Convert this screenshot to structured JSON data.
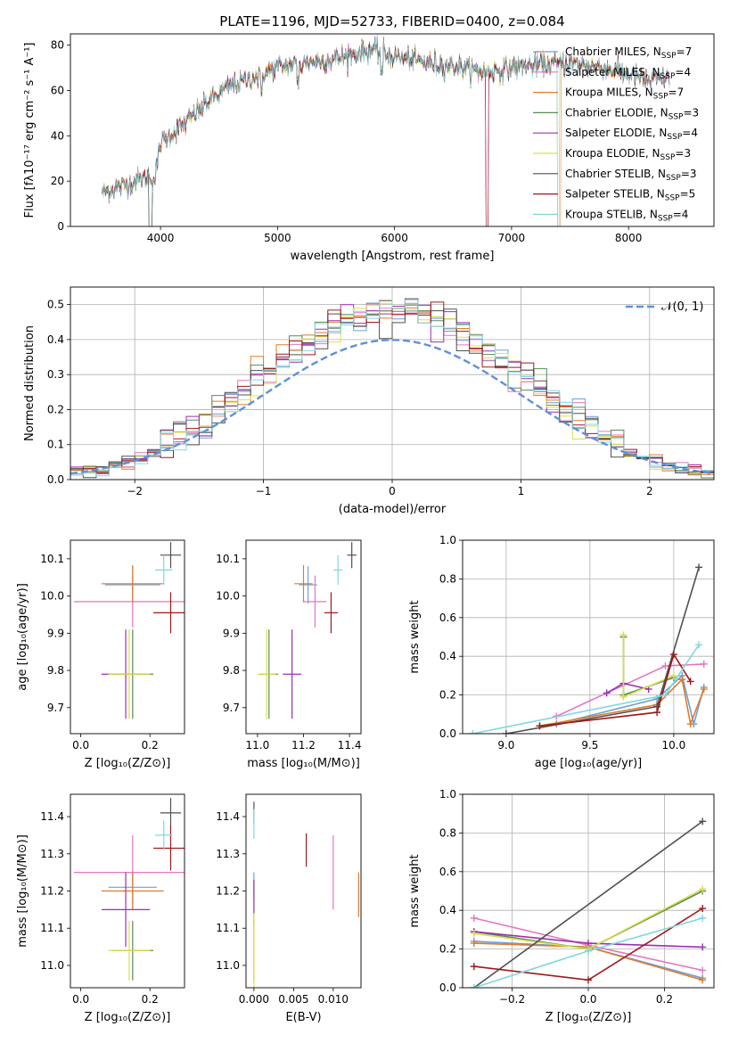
{
  "figure": {
    "title": "PLATE=1196, MJD=52733, FIBERID=0400, z=0.084"
  },
  "models": [
    {
      "name": "Chabrier MILES",
      "nssp": "7",
      "color": "#6f9fd8"
    },
    {
      "name": "Salpeter MILES",
      "nssp": "4",
      "color": "#e377c2"
    },
    {
      "name": "Kroupa MILES",
      "nssp": "7",
      "color": "#e07b2a"
    },
    {
      "name": "Chabrier ELODIE",
      "nssp": "3",
      "color": "#5a8a5a"
    },
    {
      "name": "Salpeter ELODIE",
      "nssp": "4",
      "color": "#9b30b0"
    },
    {
      "name": "Kroupa ELODIE",
      "nssp": "3",
      "color": "#d9e04a"
    },
    {
      "name": "Chabrier STELIB",
      "nssp": "3",
      "color": "#505050"
    },
    {
      "name": "Salpeter STELIB",
      "nssp": "5",
      "color": "#a01818"
    },
    {
      "name": "Kroupa STELIB",
      "nssp": "4",
      "color": "#7fd8e0"
    }
  ],
  "chart_data": [
    {
      "id": "spectrum",
      "type": "line",
      "title": "PLATE=1196, MJD=52733, FIBERID=0400, z=0.084",
      "xlabel": "wavelength [Angstrom, rest frame]",
      "ylabel": "Flux [fλ10⁻¹⁷ erg cm⁻² s⁻¹ A⁻¹]",
      "xlim": [
        3230,
        8730
      ],
      "ylim": [
        0,
        85
      ],
      "xticks": [
        "4000",
        "5000",
        "6000",
        "7000",
        "8000"
      ],
      "yticks": [
        "0",
        "20",
        "40",
        "60",
        "80"
      ],
      "legend": "upper-right",
      "continuum_nodes": [
        [
          3500,
          15
        ],
        [
          3900,
          22
        ],
        [
          3950,
          20
        ],
        [
          4000,
          37
        ],
        [
          4200,
          45
        ],
        [
          4400,
          55
        ],
        [
          4600,
          62
        ],
        [
          4800,
          66
        ],
        [
          5000,
          70
        ],
        [
          5200,
          72
        ],
        [
          5500,
          74
        ],
        [
          5800,
          78
        ],
        [
          6000,
          75
        ],
        [
          6300,
          72
        ],
        [
          6600,
          70
        ],
        [
          6800,
          68
        ],
        [
          7100,
          71
        ],
        [
          7500,
          72
        ],
        [
          7800,
          70
        ],
        [
          8000,
          67
        ],
        [
          8200,
          64
        ],
        [
          8350,
          66
        ]
      ],
      "drops": [
        [
          3900,
          3930
        ],
        [
          6780,
          6800
        ],
        [
          7390,
          7410
        ]
      ]
    },
    {
      "id": "residuals",
      "type": "histogram",
      "xlabel": "(data-model)/error",
      "ylabel": "Normed distribution",
      "xlim": [
        -2.5,
        2.5
      ],
      "ylim": [
        0,
        0.55
      ],
      "xticks": [
        "−2",
        "−1",
        "0",
        "1",
        "2"
      ],
      "yticks": [
        "0.0",
        "0.1",
        "0.2",
        "0.3",
        "0.4",
        "0.5"
      ],
      "grid": true,
      "gauss_label": "𝒩(0, 1)",
      "bin_width": 0.1
    },
    {
      "id": "age-vs-Z",
      "type": "errorbar",
      "xlabel": "Z [log₁₀(Z/Z⊙)]",
      "ylabel": "age  [log₁₀(age/yr)]",
      "xlim": [
        -0.03,
        0.3
      ],
      "ylim": [
        9.63,
        10.15
      ],
      "xticks": [
        "0.0",
        "0.2"
      ],
      "yticks": [
        "9.7",
        "9.8",
        "9.9",
        "10.0",
        "10.1"
      ],
      "points": [
        {
          "m": 0,
          "x": 0.15,
          "y": 10.03,
          "ex": 0.08,
          "ey": 0.05
        },
        {
          "m": 1,
          "x": 0.15,
          "y": 9.985,
          "ex": 0.17,
          "ey": 0.07
        },
        {
          "m": 2,
          "x": 0.15,
          "y": 10.033,
          "ex": 0.09,
          "ey": 0.05
        },
        {
          "m": 3,
          "x": 0.15,
          "y": 9.79,
          "ex": 0.06,
          "ey": 0.12
        },
        {
          "m": 4,
          "x": 0.13,
          "y": 9.79,
          "ex": 0.07,
          "ey": 0.12
        },
        {
          "m": 5,
          "x": 0.14,
          "y": 9.79,
          "ex": 0.06,
          "ey": 0.12
        },
        {
          "m": 6,
          "x": 0.26,
          "y": 10.11,
          "ex": 0.03,
          "ey": 0.035
        },
        {
          "m": 7,
          "x": 0.26,
          "y": 9.955,
          "ex": 0.05,
          "ey": 0.055
        },
        {
          "m": 8,
          "x": 0.24,
          "y": 10.07,
          "ex": 0.025,
          "ey": 0.04
        }
      ]
    },
    {
      "id": "age-vs-mass",
      "type": "errorbar",
      "xlabel": "mass [log₁₀(M/M⊙)]",
      "ylabel": "",
      "xlim": [
        10.95,
        11.45
      ],
      "ylim": [
        9.63,
        10.15
      ],
      "xticks": [
        "11.0",
        "11.2",
        "11.4"
      ],
      "yticks": [
        "9.7",
        "9.8",
        "9.9",
        "10.0",
        "10.1"
      ],
      "points": [
        {
          "m": 0,
          "x": 11.22,
          "y": 10.03,
          "ex": 0.04,
          "ey": 0.05
        },
        {
          "m": 1,
          "x": 11.25,
          "y": 9.985,
          "ex": 0.05,
          "ey": 0.07
        },
        {
          "m": 2,
          "x": 11.2,
          "y": 10.033,
          "ex": 0.04,
          "ey": 0.05
        },
        {
          "m": 3,
          "x": 11.05,
          "y": 9.79,
          "ex": 0.04,
          "ey": 0.12
        },
        {
          "m": 4,
          "x": 11.15,
          "y": 9.79,
          "ex": 0.04,
          "ey": 0.12
        },
        {
          "m": 5,
          "x": 11.04,
          "y": 9.79,
          "ex": 0.04,
          "ey": 0.12
        },
        {
          "m": 6,
          "x": 11.41,
          "y": 10.11,
          "ex": 0.02,
          "ey": 0.035
        },
        {
          "m": 7,
          "x": 11.32,
          "y": 9.955,
          "ex": 0.03,
          "ey": 0.055
        },
        {
          "m": 8,
          "x": 11.35,
          "y": 10.07,
          "ex": 0.02,
          "ey": 0.04
        }
      ]
    },
    {
      "id": "weight-vs-age",
      "type": "line",
      "xlabel": "age  [log₁₀(age/yr)]",
      "ylabel": "mass weight",
      "xlim": [
        8.74,
        10.24
      ],
      "ylim": [
        0,
        1.0
      ],
      "xticks": [
        "9.0",
        "9.5",
        "10.0"
      ],
      "yticks": [
        "0.0",
        "0.2",
        "0.4",
        "0.6",
        "0.8",
        "1.0"
      ],
      "grid": true,
      "series": [
        {
          "m": 0,
          "x": [
            9.3,
            9.9,
            10.05,
            10.12,
            10.18
          ],
          "y": [
            0.05,
            0.18,
            0.3,
            0.05,
            0.24
          ]
        },
        {
          "m": 1,
          "x": [
            9.3,
            9.95,
            10.18
          ],
          "y": [
            0.09,
            0.35,
            0.36
          ]
        },
        {
          "m": 2,
          "x": [
            9.2,
            9.9,
            10.05,
            10.1,
            10.18
          ],
          "y": [
            0.04,
            0.15,
            0.28,
            0.05,
            0.23
          ]
        },
        {
          "m": 3,
          "x": [
            9.7,
            9.7,
            10.0
          ],
          "y": [
            0.5,
            0.2,
            0.29
          ]
        },
        {
          "m": 4,
          "x": [
            9.6,
            9.7,
            9.85
          ],
          "y": [
            0.21,
            0.26,
            0.23
          ]
        },
        {
          "m": 5,
          "x": [
            9.7,
            9.7,
            10.0
          ],
          "y": [
            0.51,
            0.19,
            0.3
          ]
        },
        {
          "m": 6,
          "x": [
            9.0,
            9.9,
            10.15
          ],
          "y": [
            0.0,
            0.14,
            0.86
          ]
        },
        {
          "m": 7,
          "x": [
            9.2,
            9.9,
            10.0,
            10.1
          ],
          "y": [
            0.04,
            0.11,
            0.41,
            0.27
          ]
        },
        {
          "m": 8,
          "x": [
            8.8,
            9.95,
            10.15
          ],
          "y": [
            0.0,
            0.2,
            0.46
          ]
        }
      ]
    },
    {
      "id": "mass-vs-Z",
      "type": "errorbar",
      "xlabel": "Z [log₁₀(Z/Z⊙)]",
      "ylabel": "mass [log₁₀(M/M⊙)]",
      "xlim": [
        -0.03,
        0.3
      ],
      "ylim": [
        10.94,
        11.46
      ],
      "xticks": [
        "0.0",
        "0.2"
      ],
      "yticks": [
        "11.0",
        "11.1",
        "11.2",
        "11.3",
        "11.4"
      ],
      "points": [
        {
          "m": 0,
          "x": 0.15,
          "y": 11.21,
          "ex": 0.07,
          "ey": 0.04
        },
        {
          "m": 1,
          "x": 0.15,
          "y": 11.25,
          "ex": 0.17,
          "ey": 0.1
        },
        {
          "m": 2,
          "x": 0.15,
          "y": 11.2,
          "ex": 0.09,
          "ey": 0.05
        },
        {
          "m": 3,
          "x": 0.15,
          "y": 11.04,
          "ex": 0.06,
          "ey": 0.08
        },
        {
          "m": 4,
          "x": 0.13,
          "y": 11.15,
          "ex": 0.07,
          "ey": 0.1
        },
        {
          "m": 5,
          "x": 0.14,
          "y": 11.04,
          "ex": 0.06,
          "ey": 0.08
        },
        {
          "m": 6,
          "x": 0.26,
          "y": 11.41,
          "ex": 0.03,
          "ey": 0.04
        },
        {
          "m": 7,
          "x": 0.26,
          "y": 11.315,
          "ex": 0.05,
          "ey": 0.06
        },
        {
          "m": 8,
          "x": 0.24,
          "y": 11.35,
          "ex": 0.025,
          "ey": 0.04
        }
      ]
    },
    {
      "id": "mass-vs-EBV",
      "type": "errorbar",
      "xlabel": "E(B-V)",
      "ylabel": "",
      "xlim": [
        -0.001,
        0.0135
      ],
      "ylim": [
        10.94,
        11.46
      ],
      "xticks": [
        "0.000",
        "0.005",
        "0.010"
      ],
      "yticks": [
        "11.0",
        "11.1",
        "11.2",
        "11.3",
        "11.4"
      ],
      "points": [
        {
          "m": 0,
          "x": 0.0,
          "y": 11.21,
          "ex": 0,
          "ey": 0.04
        },
        {
          "m": 1,
          "x": 0.01,
          "y": 11.25,
          "ex": 0,
          "ey": 0.1
        },
        {
          "m": 2,
          "x": 0.0132,
          "y": 11.19,
          "ex": 0,
          "ey": 0.06
        },
        {
          "m": 3,
          "x": 0.0,
          "y": 11.04,
          "ex": 0,
          "ey": 0.08
        },
        {
          "m": 4,
          "x": 0.0,
          "y": 11.17,
          "ex": 0,
          "ey": 0.06
        },
        {
          "m": 5,
          "x": 0.0,
          "y": 11.04,
          "ex": 0,
          "ey": 0.1
        },
        {
          "m": 6,
          "x": 0.0,
          "y": 11.41,
          "ex": 0,
          "ey": 0.03
        },
        {
          "m": 7,
          "x": 0.0066,
          "y": 11.31,
          "ex": 0,
          "ey": 0.045
        },
        {
          "m": 8,
          "x": 0.0,
          "y": 11.38,
          "ex": 0,
          "ey": 0.04
        }
      ]
    },
    {
      "id": "weight-vs-Z",
      "type": "line",
      "xlabel": "Z [log₁₀(Z/Z⊙)]",
      "ylabel": "mass weight",
      "xlim": [
        -0.33,
        0.33
      ],
      "ylim": [
        0,
        1.0
      ],
      "xticks": [
        "−0.2",
        "0.0",
        "0.2"
      ],
      "yticks": [
        "0.0",
        "0.2",
        "0.4",
        "0.6",
        "0.8",
        "1.0"
      ],
      "grid": true,
      "series": [
        {
          "m": 0,
          "x": [
            -0.3,
            0.0,
            0.3
          ],
          "y": [
            0.24,
            0.21,
            0.05
          ]
        },
        {
          "m": 1,
          "x": [
            -0.3,
            0.0,
            0.3
          ],
          "y": [
            0.36,
            0.22,
            0.09
          ]
        },
        {
          "m": 2,
          "x": [
            -0.3,
            0.0,
            0.3
          ],
          "y": [
            0.23,
            0.21,
            0.04
          ]
        },
        {
          "m": 3,
          "x": [
            -0.3,
            0.0,
            0.3
          ],
          "y": [
            0.29,
            0.2,
            0.5
          ]
        },
        {
          "m": 4,
          "x": [
            -0.3,
            0.0,
            0.3
          ],
          "y": [
            0.29,
            0.23,
            0.21
          ]
        },
        {
          "m": 5,
          "x": [
            -0.3,
            0.0,
            0.3
          ],
          "y": [
            0.28,
            0.2,
            0.51
          ]
        },
        {
          "m": 6,
          "x": [
            -0.3,
            0.3
          ],
          "y": [
            0.0,
            0.86
          ]
        },
        {
          "m": 7,
          "x": [
            -0.3,
            0.0,
            0.3
          ],
          "y": [
            0.11,
            0.04,
            0.41
          ]
        },
        {
          "m": 8,
          "x": [
            -0.3,
            0.0,
            0.3
          ],
          "y": [
            0.0,
            0.19,
            0.36
          ]
        }
      ]
    }
  ]
}
